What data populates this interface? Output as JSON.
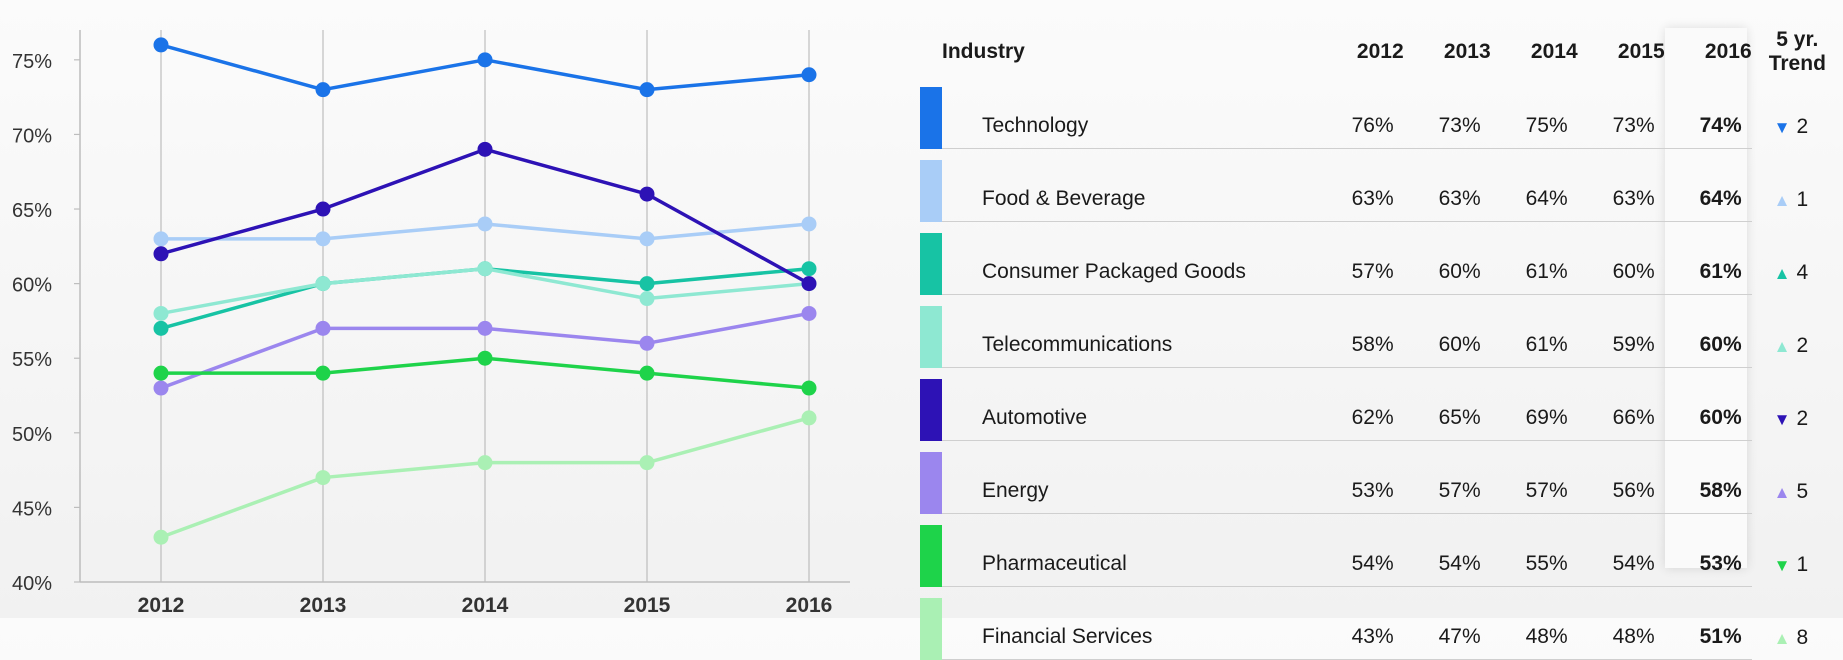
{
  "chart_data": {
    "type": "line",
    "x": [
      "2012",
      "2013",
      "2014",
      "2015",
      "2016"
    ],
    "yticks": [
      "40%",
      "45%",
      "50%",
      "55%",
      "60%",
      "65%",
      "70%",
      "75%"
    ],
    "ylim": [
      40,
      77
    ],
    "grid": "vertical",
    "series": [
      {
        "name": "Technology",
        "color": "#1a73e8",
        "values": [
          76,
          73,
          75,
          73,
          74
        ]
      },
      {
        "name": "Food & Beverage",
        "color": "#a9cdf7",
        "values": [
          63,
          63,
          64,
          63,
          64
        ]
      },
      {
        "name": "Consumer Packaged Goods",
        "color": "#17c3a4",
        "values": [
          57,
          60,
          61,
          60,
          61
        ]
      },
      {
        "name": "Telecommunications",
        "color": "#8ee8d2",
        "values": [
          58,
          60,
          61,
          59,
          60
        ]
      },
      {
        "name": "Automotive",
        "color": "#2d12b5",
        "values": [
          62,
          65,
          69,
          66,
          60
        ]
      },
      {
        "name": "Energy",
        "color": "#9b86ee",
        "values": [
          53,
          57,
          57,
          56,
          58
        ]
      },
      {
        "name": "Pharmaceutical",
        "color": "#1ed34a",
        "values": [
          54,
          54,
          55,
          54,
          53
        ]
      },
      {
        "name": "Financial Services",
        "color": "#aaf0b4",
        "values": [
          43,
          47,
          48,
          48,
          51
        ]
      }
    ]
  },
  "table": {
    "header": {
      "industry": "Industry",
      "years": [
        "2012",
        "2013",
        "2014",
        "2015",
        "2016"
      ],
      "trend_line1": "5 yr.",
      "trend_line2": "Trend"
    },
    "rows": [
      {
        "industry": "Technology",
        "color": "#1a73e8",
        "values": [
          "76%",
          "73%",
          "75%",
          "73%",
          "74%"
        ],
        "trend_dir": "down",
        "trend_symbol": "▼",
        "trend_value": "2"
      },
      {
        "industry": "Food & Beverage",
        "color": "#a9cdf7",
        "values": [
          "63%",
          "63%",
          "64%",
          "63%",
          "64%"
        ],
        "trend_dir": "up",
        "trend_symbol": "▲",
        "trend_value": "1"
      },
      {
        "industry": "Consumer Packaged Goods",
        "color": "#17c3a4",
        "values": [
          "57%",
          "60%",
          "61%",
          "60%",
          "61%"
        ],
        "trend_dir": "up",
        "trend_symbol": "▲",
        "trend_value": "4"
      },
      {
        "industry": "Telecommunications",
        "color": "#8ee8d2",
        "values": [
          "58%",
          "60%",
          "61%",
          "59%",
          "60%"
        ],
        "trend_dir": "up",
        "trend_symbol": "▲",
        "trend_value": "2"
      },
      {
        "industry": "Automotive",
        "color": "#2d12b5",
        "values": [
          "62%",
          "65%",
          "69%",
          "66%",
          "60%"
        ],
        "trend_dir": "down",
        "trend_symbol": "▼",
        "trend_value": "2"
      },
      {
        "industry": "Energy",
        "color": "#9b86ee",
        "values": [
          "53%",
          "57%",
          "57%",
          "56%",
          "58%"
        ],
        "trend_dir": "up",
        "trend_symbol": "▲",
        "trend_value": "5"
      },
      {
        "industry": "Pharmaceutical",
        "color": "#1ed34a",
        "values": [
          "54%",
          "54%",
          "55%",
          "54%",
          "53%"
        ],
        "trend_dir": "down",
        "trend_symbol": "▼",
        "trend_value": "1"
      },
      {
        "industry": "Financial Services",
        "color": "#aaf0b4",
        "values": [
          "43%",
          "47%",
          "48%",
          "48%",
          "51%"
        ],
        "trend_dir": "up",
        "trend_symbol": "▲",
        "trend_value": "8"
      }
    ]
  }
}
